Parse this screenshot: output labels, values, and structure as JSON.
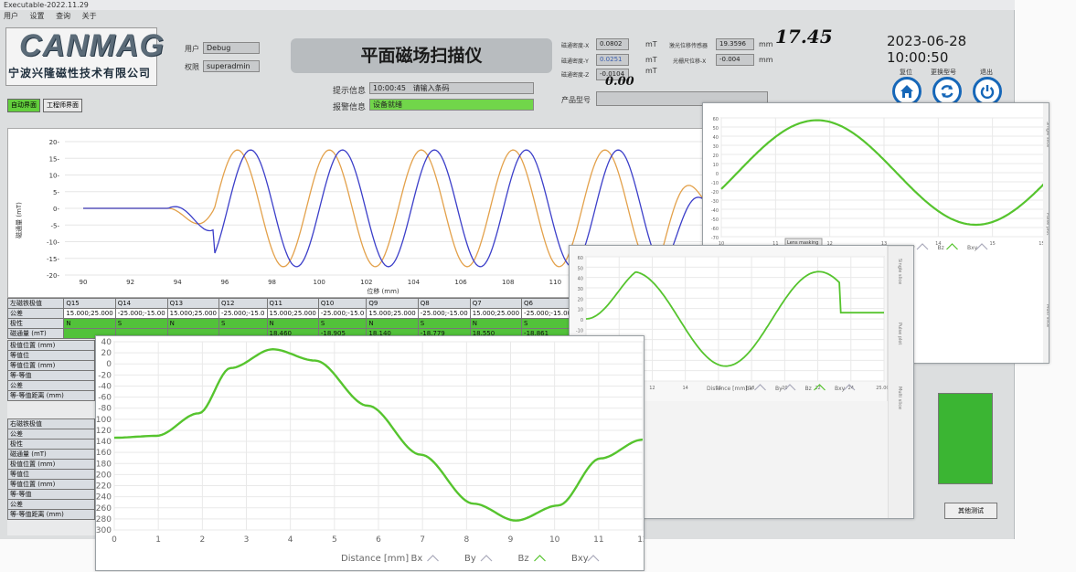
{
  "window": {
    "title": "Executable-2022.11.29"
  },
  "menu": [
    "用户",
    "设置",
    "查询",
    "关于"
  ],
  "logo": {
    "brand": "CANMAG",
    "company": "宁波兴隆磁性技术有限公司"
  },
  "user": {
    "user_label": "用户",
    "user_value": "Debug",
    "perm_label": "权限",
    "perm_value": "superadmin"
  },
  "app_title": "平面磁场扫描仪",
  "hint": {
    "label": "提示信息",
    "time": "10:00:45",
    "text": "请输入条码"
  },
  "alarm": {
    "label": "报警信息",
    "text": "设备就绪"
  },
  "readouts": [
    {
      "label": "磁通密度-X",
      "value": "0.0802",
      "unit": "mT"
    },
    {
      "label": "磁通密度-Y",
      "value": "0.0251",
      "unit": "mT"
    },
    {
      "label": "磁通密度-Z",
      "value": "-0.0104",
      "unit": "mT"
    }
  ],
  "sensor": [
    {
      "label": "激光位移传感器",
      "value": "19.3596",
      "unit": "mm"
    },
    {
      "label": "光栅尺位移-X",
      "value": "-0.004",
      "unit": "mm"
    }
  ],
  "handwriting": [
    "17.45",
    "0.00"
  ],
  "datetime": "2023-06-28 10:00:50",
  "product_label": "产品型号",
  "controls": [
    {
      "label": "复位",
      "icon": "home-icon"
    },
    {
      "label": "更换型号",
      "icon": "refresh-icon"
    },
    {
      "label": "退出",
      "icon": "power-icon"
    }
  ],
  "tabs": [
    "自动界面",
    "工程师界面"
  ],
  "colors": {
    "blue": "#3c3fc9",
    "orange": "#e3a14b",
    "green": "#56c42e",
    "accent_blue": "#1667b8"
  },
  "main_chart": {
    "ylabel": "磁通量 (mT)",
    "xlabel": "位移 (mm)",
    "yticks": [
      "20",
      "15",
      "10",
      "5",
      "0",
      "-5",
      "-10",
      "-15",
      "-20"
    ],
    "xticks": [
      "90",
      "92",
      "94",
      "96",
      "98",
      "100",
      "102",
      "104",
      "106",
      "108",
      "110",
      "112"
    ]
  },
  "table": {
    "header": [
      "左磁铁极值",
      "Q15",
      "Q14",
      "Q13",
      "Q12",
      "Q11",
      "Q10",
      "Q9",
      "Q8",
      "Q7",
      "Q6"
    ],
    "tolerance": [
      "公差",
      "15.000;25.000",
      "-25.000;-15.00",
      "15.000;25.000",
      "-25.000;-15.0",
      "15.000;25.000",
      "-25.000;-15.0",
      "15.000;25.000",
      "-25.000;-15.00",
      "15.000;25.000",
      "-25.000;-15.00"
    ],
    "polarity": [
      "极性",
      "N",
      "S",
      "N",
      "S",
      "N",
      "S",
      "N",
      "S",
      "N",
      "S"
    ],
    "flux_label": "磁通量 (mT)",
    "flux_visible": [
      "18.460",
      "-18.905",
      "18.140",
      "-18.779",
      "18.550",
      "-18.861"
    ],
    "row_labels_left": [
      "极值位置 (mm)",
      "等值位",
      "等值位置 (mm)",
      "等-等值",
      "公差",
      "等-等值距离 (mm)"
    ],
    "row_labels_right": [
      "右磁铁极值",
      "公差",
      "极性",
      "磁通量 (mT)",
      "极值位置 (mm)",
      "等值位",
      "等值位置 (mm)",
      "等-等值",
      "公差",
      "等-等值距离 (mm)"
    ]
  },
  "overlay_big": {
    "yticks": [
      "40",
      "20",
      "0",
      "-20",
      "-40",
      "-60",
      "-80",
      "-100",
      "-120",
      "-140",
      "-160",
      "-180",
      "-200",
      "-220",
      "-240",
      "-260",
      "-280",
      "-300"
    ],
    "xticks": [
      "0",
      "1",
      "2",
      "3",
      "4",
      "5",
      "6",
      "7",
      "8",
      "9",
      "10",
      "11",
      "12"
    ],
    "xlabel": "Distance [mm]",
    "legend": [
      "Bx",
      "By",
      "Bz",
      "Bxy"
    ]
  },
  "overlay_mid": {
    "yticks": [
      "60",
      "50",
      "40",
      "30",
      "20",
      "10",
      "0",
      "-10",
      "-20",
      "-30",
      "-40",
      "-50",
      "-60"
    ],
    "xticks": [
      "8",
      "10",
      "12",
      "14",
      "16",
      "18",
      "20",
      "22",
      "24",
      "25.002"
    ],
    "xlabel": "Distance [mm]",
    "legend": [
      "Bx",
      "By",
      "Bz",
      "Bxy"
    ],
    "side_tabs": [
      "Single slice",
      "Pulse plot",
      "Multi slice"
    ]
  },
  "overlay_top": {
    "yticks": [
      "60",
      "50",
      "40",
      "30",
      "20",
      "10",
      "0",
      "-10",
      "-20",
      "-30",
      "-40",
      "-50",
      "-60",
      "-70"
    ],
    "xticks": [
      "10",
      "11",
      "12",
      "13",
      "14",
      "15",
      "15.008"
    ],
    "legend": [
      "By",
      "Bz",
      "Bxy"
    ],
    "button": "Lens masking",
    "side_tabs": [
      "Single slice",
      "Pulse plot",
      "Multi slice"
    ]
  },
  "other_test_button": "其他测试"
}
